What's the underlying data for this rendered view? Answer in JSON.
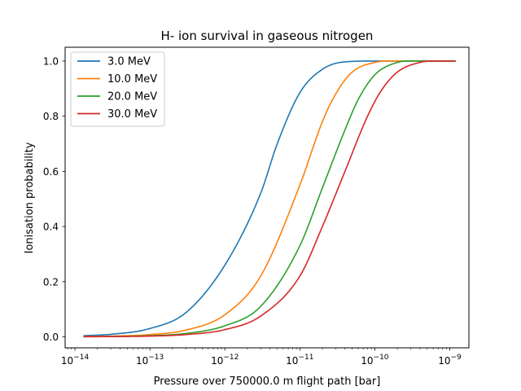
{
  "chart_data": {
    "type": "line",
    "title": "H- ion survival in gaseous nitrogen",
    "xlabel": "Pressure over 750000.0 m flight path [bar]",
    "ylabel": "Ionisation probability",
    "x_scale": "log",
    "xlim": [
      7.4e-15,
      1.8e-09
    ],
    "ylim": [
      -0.04,
      1.05
    ],
    "x_ticks": [
      1e-14,
      1e-13,
      1e-12,
      1e-11,
      1e-10,
      1e-09
    ],
    "x_tick_labels": [
      {
        "base": "10",
        "exp": "−14"
      },
      {
        "base": "10",
        "exp": "−13"
      },
      {
        "base": "10",
        "exp": "−12"
      },
      {
        "base": "10",
        "exp": "−11"
      },
      {
        "base": "10",
        "exp": "−10"
      },
      {
        "base": "10",
        "exp": "−9"
      }
    ],
    "y_ticks": [
      0.0,
      0.2,
      0.4,
      0.6,
      0.8,
      1.0
    ],
    "y_tick_labels": [
      "0.0",
      "0.2",
      "0.4",
      "0.6",
      "0.8",
      "1.0"
    ],
    "grid": false,
    "legend": "top-left",
    "x_range_data": [
      1.3e-14,
      1.2e-09
    ],
    "series": [
      {
        "name": "3.0 MeV",
        "color": "#1f77b4",
        "points": [
          [
            1.3e-14,
            0.004
          ],
          [
            3e-14,
            0.009
          ],
          [
            1e-13,
            0.03
          ],
          [
            3e-13,
            0.087
          ],
          [
            1e-12,
            0.26
          ],
          [
            3e-12,
            0.52
          ],
          [
            5e-12,
            0.7
          ],
          [
            1e-11,
            0.885
          ],
          [
            2e-11,
            0.97
          ],
          [
            4e-11,
            0.997
          ],
          [
            1e-10,
            1.0
          ],
          [
            1.2e-09,
            1.0
          ]
        ]
      },
      {
        "name": "10.0 MeV",
        "color": "#ff7f0e",
        "points": [
          [
            1.3e-14,
            0.001
          ],
          [
            3e-14,
            0.0025
          ],
          [
            1e-13,
            0.008
          ],
          [
            3e-13,
            0.024
          ],
          [
            1e-12,
            0.08
          ],
          [
            3e-12,
            0.22
          ],
          [
            1e-11,
            0.55
          ],
          [
            2e-11,
            0.78
          ],
          [
            3e-11,
            0.88
          ],
          [
            5e-11,
            0.96
          ],
          [
            1e-10,
            0.995
          ],
          [
            1.5e-10,
            1.0
          ],
          [
            1.2e-09,
            1.0
          ]
        ]
      },
      {
        "name": "20.0 MeV",
        "color": "#2ca02c",
        "points": [
          [
            1.3e-14,
            0.0005
          ],
          [
            3e-14,
            0.0012
          ],
          [
            1e-13,
            0.004
          ],
          [
            3e-13,
            0.012
          ],
          [
            1e-12,
            0.04
          ],
          [
            3e-12,
            0.11
          ],
          [
            1e-11,
            0.33
          ],
          [
            2e-11,
            0.54
          ],
          [
            4e-11,
            0.75
          ],
          [
            6e-11,
            0.86
          ],
          [
            1e-10,
            0.95
          ],
          [
            2e-10,
            0.995
          ],
          [
            3e-10,
            1.0
          ],
          [
            1.2e-09,
            1.0
          ]
        ]
      },
      {
        "name": "30.0 MeV",
        "color": "#d62728",
        "points": [
          [
            1.3e-14,
            0.0003
          ],
          [
            3e-14,
            0.0008
          ],
          [
            1e-13,
            0.0025
          ],
          [
            3e-13,
            0.008
          ],
          [
            1e-12,
            0.026
          ],
          [
            3e-12,
            0.075
          ],
          [
            1e-11,
            0.22
          ],
          [
            2e-11,
            0.4
          ],
          [
            4e-11,
            0.6
          ],
          [
            8e-11,
            0.8
          ],
          [
            1.2e-10,
            0.89
          ],
          [
            2e-10,
            0.96
          ],
          [
            4e-10,
            0.995
          ],
          [
            6e-10,
            1.0
          ],
          [
            1.2e-09,
            1.0
          ]
        ]
      }
    ]
  }
}
